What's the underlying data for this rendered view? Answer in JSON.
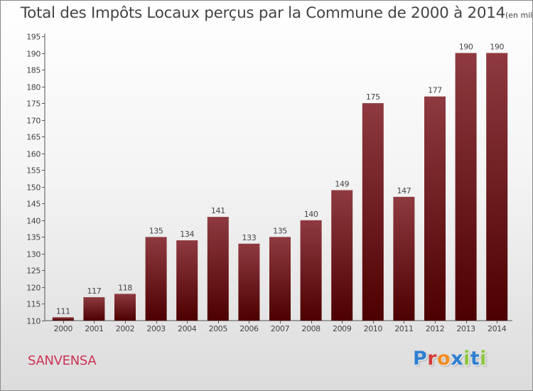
{
  "title": "Total des Impôts Locaux perçus par la Commune de 2000 à 2014",
  "unit_label": "(en milliers d'€)",
  "commune_name": "SANVENSA",
  "logo": {
    "text": "Proxiti",
    "letter_colors": [
      "#2f7fd0",
      "#d23c3c",
      "#f28c1e",
      "#2f7fd0",
      "#8cc63e",
      "#2f7fd0",
      "#8cc63e"
    ]
  },
  "colors": {
    "bar_light": "#8e3a40",
    "bar_dark": "#4d0000",
    "commune_text": "#cc3355"
  },
  "chart_data": {
    "type": "bar",
    "categories": [
      "2000",
      "2001",
      "2002",
      "2003",
      "2004",
      "2005",
      "2006",
      "2007",
      "2008",
      "2009",
      "2010",
      "2011",
      "2012",
      "2013",
      "2014"
    ],
    "values": [
      111,
      117,
      118,
      135,
      134,
      141,
      133,
      135,
      140,
      149,
      175,
      147,
      177,
      190,
      190
    ],
    "ylim": [
      110,
      195
    ],
    "yticks": [
      110,
      115,
      120,
      125,
      130,
      135,
      140,
      145,
      150,
      155,
      160,
      165,
      170,
      175,
      180,
      185,
      190,
      195
    ],
    "grid": false,
    "legend": "none"
  }
}
